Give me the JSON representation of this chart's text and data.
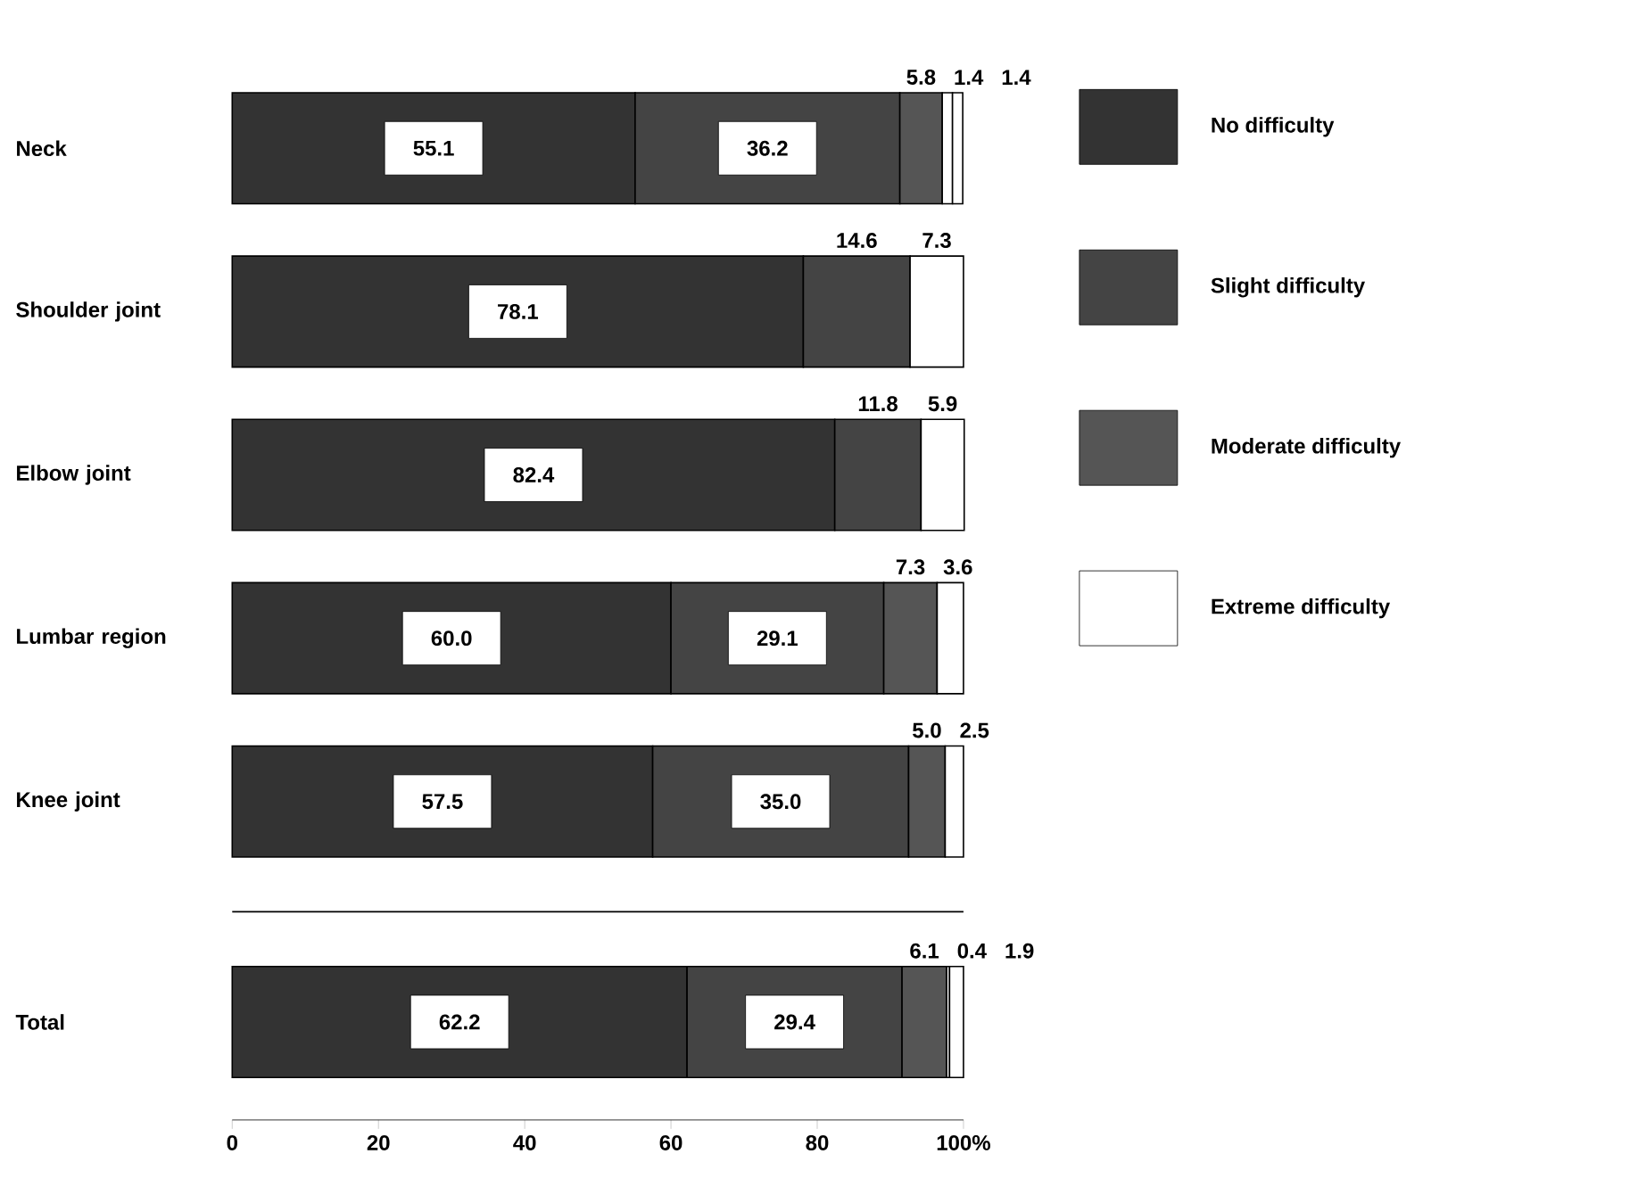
{
  "chart_data": {
    "type": "bar",
    "orientation": "horizontal",
    "stacked": true,
    "legend": "right",
    "categories": [
      "Neck",
      "Shoulder joint",
      "Elbow joint",
      "Lumbar region",
      "Knee joint",
      "Total"
    ],
    "series": [
      {
        "name": "No difficulty",
        "color": "#333333",
        "values": [
          55.1,
          78.1,
          82.4,
          60.0,
          57.5,
          62.2
        ],
        "value_labels": [
          "55.1",
          "78.1",
          "82.4",
          "60.0",
          "57.5",
          "62.2"
        ]
      },
      {
        "name": "Slight difficulty",
        "color": "#444444",
        "values": [
          36.2,
          14.6,
          11.8,
          29.1,
          35.0,
          29.4
        ],
        "value_labels": [
          "36.2",
          "14.6",
          "11.8",
          "29.1",
          "35.0",
          "29.4"
        ]
      },
      {
        "name": "Moderate difficulty",
        "color": "#555555",
        "values": [
          5.8,
          null,
          null,
          7.3,
          5.0,
          6.1
        ],
        "value_labels": [
          "5.8",
          null,
          null,
          "7.3",
          "5.0",
          "6.1"
        ]
      },
      {
        "name": "Extreme difficulty",
        "color": "#ffffff",
        "values": [
          1.4,
          7.3,
          5.9,
          3.6,
          2.5,
          0.4
        ],
        "value_labels": [
          "1.4",
          "7.3",
          "5.9",
          "3.6",
          "2.5",
          "0.4"
        ]
      },
      {
        "color": "#ffffff",
        "values": [
          1.4,
          null,
          null,
          null,
          null,
          1.9
        ],
        "value_labels": [
          "1.4",
          null,
          null,
          null,
          null,
          "1.9"
        ]
      }
    ],
    "xlim": [
      0,
      100
    ],
    "xticks": [
      0,
      20,
      40,
      60,
      80,
      {
        "value": 100,
        "label": "100%"
      }
    ]
  }
}
